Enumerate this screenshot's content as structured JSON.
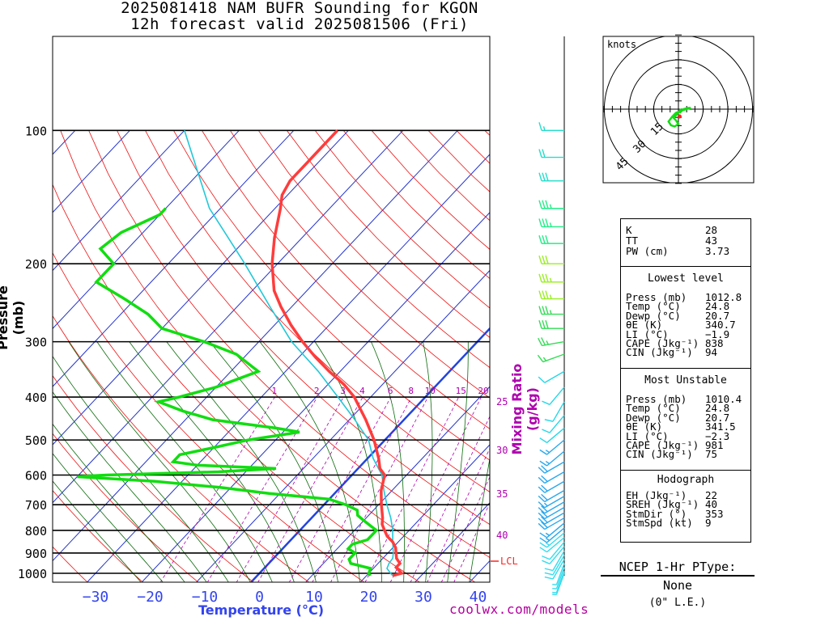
{
  "title": {
    "line1": "2025081418 NAM BUFR Sounding for KGON",
    "line2": "12h forecast valid 2025081506 (Fri)"
  },
  "skewt": {
    "pressure_ticks": [
      "100",
      "200",
      "300",
      "400",
      "500",
      "600",
      "700",
      "800",
      "900",
      "1000"
    ],
    "pressure_values": [
      100,
      200,
      300,
      400,
      500,
      600,
      700,
      800,
      900,
      1000
    ],
    "temp_ticks": [
      "−30",
      "−20",
      "−10",
      "0",
      "10",
      "20",
      "30",
      "40"
    ],
    "temp_values": [
      -30,
      -20,
      -10,
      0,
      10,
      20,
      30,
      40
    ],
    "y_axis_label": "Pressure (mb)",
    "x_axis_label": "Temperature (°C)",
    "mixing_ratio_label": "Mixing Ratio (g/kg)",
    "mixing_ratio_lines": [
      "1",
      "2",
      "3",
      "4",
      "6",
      "8",
      "10",
      "15",
      "20"
    ],
    "mixing_ratio_side": [
      "25",
      "30",
      "35",
      "40"
    ],
    "lcl_label": "LCL",
    "colors": {
      "temperature": "#ff3c3c",
      "dewpoint": "#11dd11",
      "parcel": "#22c8d8",
      "isotherm": "#2233cc",
      "freezing_line": "#2244dd",
      "dry_adiabat": "#ee1111",
      "moist_adiabat": "#0a6a0a",
      "mixing_ratio": "#b000b0",
      "lcl": "#ff2222"
    },
    "profiles": {
      "temperature": [
        [
          1012.8,
          24.8
        ],
        [
          1000,
          26
        ],
        [
          970,
          24
        ],
        [
          950,
          24
        ],
        [
          925,
          22.5
        ],
        [
          900,
          21.5
        ],
        [
          875,
          20.5
        ],
        [
          850,
          19
        ],
        [
          825,
          17
        ],
        [
          800,
          15.5
        ],
        [
          775,
          14
        ],
        [
          750,
          13
        ],
        [
          700,
          10.5
        ],
        [
          650,
          8
        ],
        [
          600,
          6
        ],
        [
          580,
          4
        ],
        [
          550,
          2
        ],
        [
          500,
          -2
        ],
        [
          450,
          -7
        ],
        [
          400,
          -13
        ],
        [
          375,
          -17
        ],
        [
          350,
          -22
        ],
        [
          325,
          -27
        ],
        [
          300,
          -32
        ],
        [
          275,
          -37
        ],
        [
          250,
          -42
        ],
        [
          230,
          -46
        ],
        [
          200,
          -51
        ],
        [
          175,
          -55
        ],
        [
          150,
          -59
        ],
        [
          140,
          -61
        ],
        [
          130,
          -62
        ],
        [
          120,
          -62
        ],
        [
          110,
          -62
        ],
        [
          100,
          -62
        ]
      ],
      "dewpoint": [
        [
          1012.8,
          20.7
        ],
        [
          1000,
          20
        ],
        [
          975,
          19.5
        ],
        [
          950,
          15
        ],
        [
          930,
          14
        ],
        [
          900,
          14
        ],
        [
          880,
          12
        ],
        [
          860,
          12
        ],
        [
          840,
          14
        ],
        [
          820,
          14
        ],
        [
          800,
          14
        ],
        [
          780,
          12
        ],
        [
          760,
          10
        ],
        [
          740,
          8
        ],
        [
          720,
          7
        ],
        [
          700,
          4
        ],
        [
          680,
          0
        ],
        [
          660,
          -12
        ],
        [
          640,
          -22
        ],
        [
          620,
          -35
        ],
        [
          605,
          -50
        ],
        [
          600,
          -45
        ],
        [
          590,
          -25
        ],
        [
          580,
          -15
        ],
        [
          570,
          -30
        ],
        [
          560,
          -35
        ],
        [
          540,
          -35
        ],
        [
          520,
          -30
        ],
        [
          500,
          -25
        ],
        [
          480,
          -17
        ],
        [
          470,
          -22
        ],
        [
          450,
          -35
        ],
        [
          430,
          -42
        ],
        [
          410,
          -48
        ],
        [
          400,
          -45
        ],
        [
          380,
          -40
        ],
        [
          350,
          -35
        ],
        [
          320,
          -42
        ],
        [
          300,
          -50
        ],
        [
          280,
          -60
        ],
        [
          260,
          -65
        ],
        [
          240,
          -72
        ],
        [
          220,
          -80
        ],
        [
          200,
          -80
        ],
        [
          185,
          -85
        ],
        [
          170,
          -84
        ],
        [
          155,
          -80
        ],
        [
          150,
          -80
        ]
      ],
      "parcel": [
        [
          1012.8,
          24.8
        ],
        [
          1000,
          24
        ],
        [
          975,
          22.5
        ],
        [
          950,
          22
        ],
        [
          925,
          21.8
        ],
        [
          900,
          21
        ],
        [
          850,
          19
        ],
        [
          800,
          17
        ],
        [
          750,
          14.5
        ],
        [
          700,
          11.5
        ],
        [
          650,
          8.5
        ],
        [
          600,
          5.5
        ],
        [
          550,
          1
        ],
        [
          500,
          -3
        ],
        [
          450,
          -9
        ],
        [
          400,
          -16
        ],
        [
          350,
          -24
        ],
        [
          300,
          -34
        ],
        [
          250,
          -44
        ],
        [
          200,
          -56
        ],
        [
          150,
          -72
        ],
        [
          100,
          -90
        ]
      ]
    }
  },
  "wind_barbs": {
    "levels": [
      [
        100,
        270,
        15
      ],
      [
        115,
        270,
        20
      ],
      [
        130,
        270,
        30
      ],
      [
        150,
        270,
        35
      ],
      [
        165,
        270,
        35
      ],
      [
        180,
        270,
        30
      ],
      [
        200,
        270,
        30
      ],
      [
        220,
        270,
        35
      ],
      [
        240,
        270,
        35
      ],
      [
        260,
        270,
        35
      ],
      [
        280,
        270,
        30
      ],
      [
        300,
        260,
        25
      ],
      [
        320,
        250,
        15
      ],
      [
        350,
        240,
        10
      ],
      [
        380,
        220,
        10
      ],
      [
        410,
        210,
        10
      ],
      [
        440,
        220,
        10
      ],
      [
        470,
        230,
        10
      ],
      [
        500,
        230,
        15
      ],
      [
        530,
        230,
        15
      ],
      [
        560,
        240,
        20
      ],
      [
        590,
        240,
        20
      ],
      [
        620,
        240,
        20
      ],
      [
        650,
        240,
        20
      ],
      [
        670,
        240,
        15
      ],
      [
        690,
        240,
        20
      ],
      [
        710,
        240,
        20
      ],
      [
        730,
        240,
        20
      ],
      [
        750,
        240,
        20
      ],
      [
        770,
        230,
        15
      ],
      [
        790,
        230,
        15
      ],
      [
        810,
        230,
        15
      ],
      [
        830,
        230,
        10
      ],
      [
        850,
        220,
        10
      ],
      [
        870,
        220,
        10
      ],
      [
        890,
        210,
        10
      ],
      [
        910,
        210,
        10
      ],
      [
        930,
        210,
        10
      ],
      [
        950,
        200,
        5
      ],
      [
        970,
        200,
        5
      ],
      [
        990,
        200,
        5
      ],
      [
        1000,
        200,
        5
      ]
    ]
  },
  "hodograph": {
    "units_label": "knots",
    "ring_labels": [
      "15",
      "30",
      "45"
    ],
    "ring_values": [
      15,
      30,
      45
    ],
    "trace_uv": [
      [
        1,
        -3
      ],
      [
        4,
        0
      ],
      [
        8,
        1
      ],
      [
        10,
        1
      ],
      [
        6,
        0
      ],
      [
        3,
        -1
      ],
      [
        -2,
        -3
      ],
      [
        -5,
        -6
      ],
      [
        -8,
        -10
      ],
      [
        -6,
        -13
      ],
      [
        -3,
        -14
      ],
      [
        0,
        -12
      ],
      [
        -2,
        -9
      ],
      [
        -4,
        -7
      ],
      [
        -2,
        -5
      ],
      [
        0,
        -3
      ],
      [
        2,
        0
      ],
      [
        1,
        -3
      ]
    ]
  },
  "indices": {
    "top": [
      {
        "label": "K",
        "value": "28"
      },
      {
        "label": "TT",
        "value": "43"
      },
      {
        "label": "PW (cm)",
        "value": "3.73"
      }
    ],
    "lowest_level": {
      "header": "Lowest level",
      "rows": [
        {
          "label": "Press (mb)",
          "value": "1012.8"
        },
        {
          "label": "Temp (°C)",
          "value": "24.8"
        },
        {
          "label": "Dewp (°C)",
          "value": "20.7"
        },
        {
          "label": "θE (K)",
          "value": "340.7"
        },
        {
          "label": "LI (°C)",
          "value": "−1.9"
        },
        {
          "label": "CAPE (Jkg⁻¹)",
          "value": "838"
        },
        {
          "label": "CIN (Jkg⁻¹)",
          "value": "94"
        }
      ]
    },
    "most_unstable": {
      "header": "Most Unstable",
      "rows": [
        {
          "label": "Press (mb)",
          "value": "1010.4"
        },
        {
          "label": "Temp (°C)",
          "value": "24.8"
        },
        {
          "label": "Dewp (°C)",
          "value": "20.7"
        },
        {
          "label": "θE (K)",
          "value": "341.5"
        },
        {
          "label": "LI (°C)",
          "value": "−2.3"
        },
        {
          "label": "CAPE (Jkg⁻¹)",
          "value": "981"
        },
        {
          "label": "CIN (Jkg⁻¹)",
          "value": "75"
        }
      ]
    },
    "hodograph": {
      "header": "Hodograph",
      "rows": [
        {
          "label": "EH (Jkg⁻¹)",
          "value": "22"
        },
        {
          "label": "SREH (Jkg⁻¹)",
          "value": "40"
        },
        {
          "label": "StmDir (°)",
          "value": "353"
        },
        {
          "label": "StmSpd (kt)",
          "value": "9"
        }
      ]
    }
  },
  "ptype": {
    "header": "NCEP 1-Hr PType:",
    "value": "None",
    "detail": "(0\" L.E.)"
  },
  "credit": "coolwx.com/models"
}
